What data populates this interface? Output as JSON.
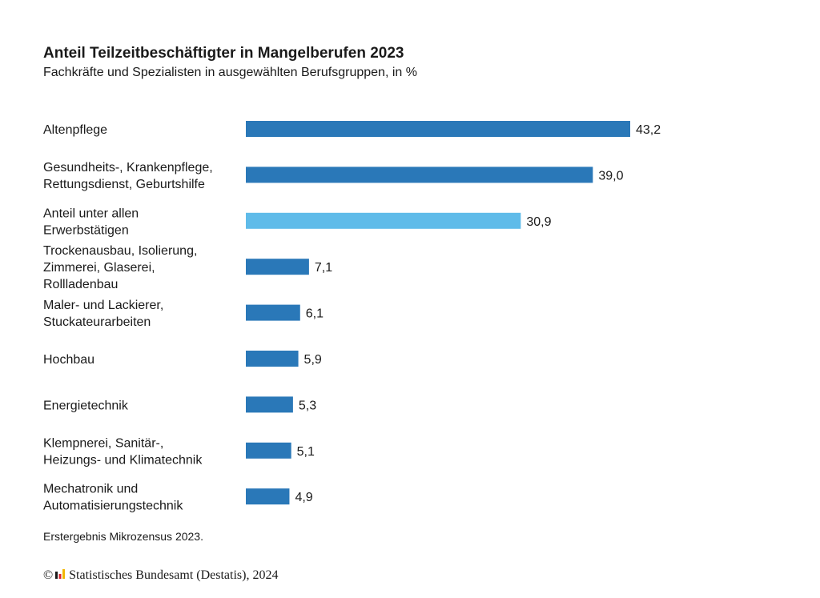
{
  "chart_data": {
    "type": "bar",
    "orientation": "horizontal",
    "title": "Anteil Teilzeitbeschäftigter in Mangelberufen 2023",
    "subtitle": "Fachkräfte und Spezialisten in ausgewählten Berufsgruppen, in %",
    "categories": [
      "Altenpflege",
      "Gesundheits-, Krankenpflege,\nRettungsdienst, Geburtshilfe",
      "Anteil unter allen\nErwerbstätigen",
      "Trockenausbau, Isolierung,\nZimmerei, Glaserei,\nRollladenbau",
      "Maler- und Lackierer,\nStuckateurarbeiten",
      "Hochbau",
      "Energietechnik",
      "Klempnerei, Sanitär-,\nHeizungs- und Klimatechnik",
      "Mechatronik und\nAutomatisierungstechnik"
    ],
    "values": [
      43.2,
      39.0,
      30.9,
      7.1,
      6.1,
      5.9,
      5.3,
      5.1,
      4.9
    ],
    "value_labels": [
      "43,2",
      "39,0",
      "30,9",
      "7,1",
      "6,1",
      "5,9",
      "5,3",
      "5,1",
      "4,9"
    ],
    "highlight_index": 2,
    "colors": {
      "bar": "#2a78b8",
      "highlight": "#5fbbe9",
      "text": "#1a1a1a"
    },
    "xlim": [
      0,
      43.2
    ],
    "grid": false,
    "legend": "none"
  },
  "footnote": "Erstergebnis Mikrozensus 2023.",
  "source": {
    "copyright_symbol": "©",
    "logo_icon": "destatis-bar-logo",
    "text": "Statistisches Bundesamt (Destatis), 2024"
  }
}
